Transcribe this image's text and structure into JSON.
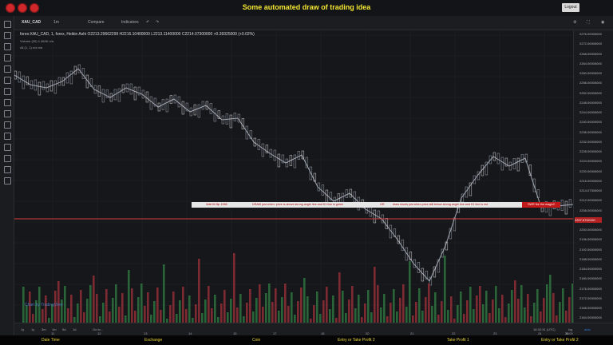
{
  "page": {
    "title": "Some automated draw of trading idea",
    "logout_label": "Logout"
  },
  "toolbar": {
    "symbol": "XAU_CAD",
    "interval": "1m",
    "compare_label": "Compare",
    "indicators_label": "Indicators"
  },
  "legend": {
    "main": "forex:XAU_CAD, 1, forex, Heikin Ashi",
    "open": "O2213.29662299",
    "high": "H2216.10400000",
    "low": "L2213.11400000",
    "close": "C2214.07300000",
    "change": "+0.39325000 (+0.02%)",
    "volume_label": "Volume (20)",
    "volume_values": "1.464K n/a",
    "all_label": "All (1, 1)",
    "all_values": "n/a n/a"
  },
  "watermark": "Chart by TradingView",
  "annotations": {
    "wait_text": "Wait till flip 1985",
    "draw_text": "DRAW just when: price is above strong angle line and K1 line is green",
    "or_text": "OR",
    "short_text": "draw shorts just when price still below strong angle line and K1 line is red",
    "red_tag_text": "SWR fire the magic!!"
  },
  "price_axis": {
    "labels": [
      "2276.00000000",
      "2272.00000000",
      "2268.00000000",
      "2264.00000000",
      "2260.00000000",
      "2256.00000000",
      "2252.00000000",
      "2248.00000000",
      "2244.00000000",
      "2240.00000000",
      "2236.00000000",
      "2232.00000000",
      "2228.00000000",
      "2224.00000000",
      "2220.00000000",
      "2216.00000000",
      "2214.07300000",
      "2212.00000000",
      "2208.00000000",
      "2204.00000000",
      "2200.00000000",
      "2196.00000000",
      "2192.00000000",
      "2188.00000000",
      "2184.00000000",
      "2180.00000000",
      "2176.00000000",
      "2172.00000000",
      "2168.00000000",
      "2164.00000000"
    ],
    "current_price": "2207.5702100"
  },
  "time_axis": {
    "labels": [
      "11",
      "12",
      "13",
      "14",
      "15",
      "17",
      "18",
      "20",
      "21",
      "22",
      "23",
      "24",
      "26",
      "11:00"
    ],
    "clock": "16:32:31 (UTC)",
    "log_label": "log",
    "auto_label": "auto"
  },
  "bottom_toolbar": {
    "ranges": [
      "1y",
      "1y",
      "3m",
      "1m",
      "5d",
      "1d",
      "Go to..."
    ]
  },
  "footer": {
    "items": [
      "Date Time",
      "Exchange",
      "Coin",
      "Entry or Take Profit 2",
      "Take Profit 1",
      "Entry or Take Profit 2"
    ]
  },
  "colors": {
    "bullish": "#2b8a3e",
    "bearish": "#b33434",
    "accent_red": "#d0282a",
    "accent_yellow": "#f2e733"
  }
}
